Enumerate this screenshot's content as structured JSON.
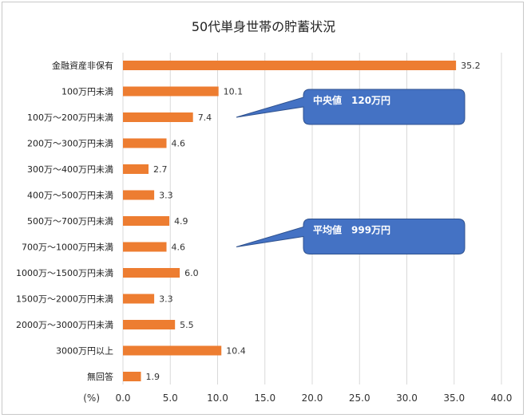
{
  "chart_data": {
    "type": "bar",
    "orientation": "horizontal",
    "title": "50代単身世帯の貯蓄状況",
    "xlabel": "(%)",
    "ylabel": "",
    "categories": [
      "金融資産非保有",
      "100万円未満",
      "100万～200万円未満",
      "200万～300万円未満",
      "300万～400万円未満",
      "400万～500万円未満",
      "500万～700万円未満",
      "700万～1000万円未満",
      "1000万～1500万円未満",
      "1500万～2000万円未満",
      "2000万～3000万円未満",
      "3000万円以上",
      "無回答"
    ],
    "values": [
      35.2,
      10.1,
      7.4,
      4.6,
      2.7,
      3.3,
      4.9,
      4.6,
      6.0,
      3.3,
      5.5,
      10.4,
      1.9
    ],
    "value_labels": [
      "35.2",
      "10.1",
      "7.4",
      "4.6",
      "2.7",
      "3.3",
      "4.9",
      "4.6",
      "6.0",
      "3.3",
      "5.5",
      "10.4",
      "1.9"
    ],
    "xlim": [
      0,
      40
    ],
    "xticks": [
      "0.0",
      "5.0",
      "10.0",
      "15.0",
      "20.0",
      "25.0",
      "30.0",
      "35.0",
      "40.0"
    ],
    "grid": true,
    "bar_color": "#ed7d31",
    "annotations": [
      {
        "text": "中央値　120万円",
        "points_to": "100万～200万円未満"
      },
      {
        "text": "平均値　999万円",
        "points_to": "700万～1000万円未満"
      }
    ],
    "callout_color": "#4472c4"
  }
}
